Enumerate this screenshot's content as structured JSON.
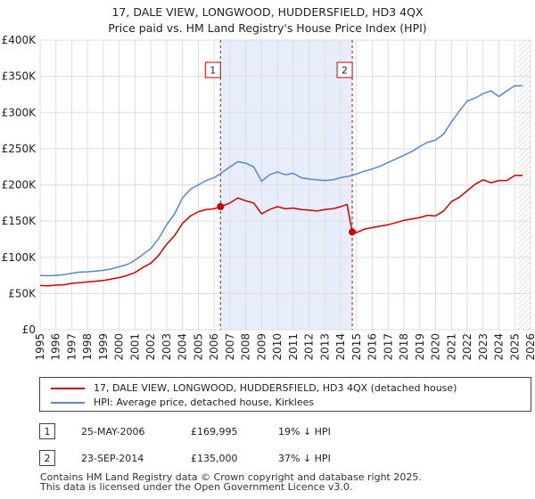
{
  "chart_data": {
    "type": "line",
    "title": "17, DALE VIEW, LONGWOOD, HUDDERSFIELD, HD3 4QX",
    "subtitle": "Price paid vs. HM Land Registry's House Price Index (HPI)",
    "xlim": [
      1995,
      2026
    ],
    "ylim": [
      0,
      400000
    ],
    "x_ticks": [
      1995,
      1996,
      1997,
      1998,
      1999,
      2000,
      2001,
      2002,
      2003,
      2004,
      2005,
      2006,
      2007,
      2008,
      2009,
      2010,
      2011,
      2012,
      2013,
      2014,
      2015,
      2016,
      2017,
      2018,
      2019,
      2020,
      2021,
      2022,
      2023,
      2024,
      2025,
      2026
    ],
    "y_ticks": [
      {
        "value": 0,
        "label": "£0"
      },
      {
        "value": 50000,
        "label": "£50K"
      },
      {
        "value": 100000,
        "label": "£100K"
      },
      {
        "value": 150000,
        "label": "£150K"
      },
      {
        "value": 200000,
        "label": "£200K"
      },
      {
        "value": 250000,
        "label": "£250K"
      },
      {
        "value": 300000,
        "label": "£300K"
      },
      {
        "value": 350000,
        "label": "£350K"
      },
      {
        "value": 400000,
        "label": "£400K"
      }
    ],
    "grid": true,
    "shaded_region": {
      "from": 2006.4,
      "to": 2014.73
    },
    "forecast_from": 2025.2,
    "series": [
      {
        "name": "17, DALE VIEW, LONGWOOD, HUDDERSFIELD, HD3 4QX (detached house)",
        "color": "#cc0000",
        "x": [
          1995,
          1995.5,
          1996,
          1996.5,
          1997,
          1997.5,
          1998,
          1998.5,
          1999,
          1999.5,
          2000,
          2000.5,
          2001,
          2001.5,
          2002,
          2002.5,
          2003,
          2003.5,
          2004,
          2004.5,
          2005,
          2005.5,
          2006,
          2006.4,
          2007,
          2007.5,
          2008,
          2008.5,
          2009,
          2009.5,
          2010,
          2010.5,
          2011,
          2011.5,
          2012,
          2012.5,
          2013,
          2013.5,
          2014,
          2014.4,
          2014.73,
          2015,
          2015.5,
          2016,
          2016.5,
          2017,
          2017.5,
          2018,
          2018.5,
          2019,
          2019.5,
          2020,
          2020.5,
          2021,
          2021.5,
          2022,
          2022.5,
          2023,
          2023.5,
          2024,
          2024.5,
          2025,
          2025.5
        ],
        "values": [
          61000,
          60500,
          61500,
          62000,
          64000,
          65000,
          66000,
          67000,
          68000,
          70000,
          72000,
          75000,
          79000,
          86000,
          92000,
          103000,
          118000,
          130000,
          147000,
          157000,
          163000,
          166000,
          167000,
          169995,
          175000,
          182000,
          178000,
          175000,
          160000,
          166000,
          170000,
          167000,
          168000,
          166000,
          165000,
          164000,
          166000,
          167000,
          170000,
          173000,
          135000,
          134000,
          139000,
          141000,
          143000,
          145000,
          148000,
          151000,
          153000,
          155000,
          158000,
          157000,
          164000,
          177000,
          183000,
          192000,
          201000,
          207000,
          203000,
          206000,
          206000,
          213000,
          213000
        ],
        "points": [
          {
            "x": 2006.4,
            "y": 169995
          },
          {
            "x": 2014.73,
            "y": 135000
          }
        ]
      },
      {
        "name": "HPI: Average price, detached house, Kirklees",
        "color": "#5588cc",
        "x": [
          1995,
          1995.5,
          1996,
          1996.5,
          1997,
          1997.5,
          1998,
          1998.5,
          1999,
          1999.5,
          2000,
          2000.5,
          2001,
          2001.5,
          2002,
          2002.5,
          2003,
          2003.5,
          2004,
          2004.5,
          2005,
          2005.5,
          2006,
          2006.5,
          2007,
          2007.5,
          2008,
          2008.5,
          2009,
          2009.5,
          2010,
          2010.5,
          2011,
          2011.5,
          2012,
          2012.5,
          2013,
          2013.5,
          2014,
          2014.5,
          2015,
          2015.5,
          2016,
          2016.5,
          2017,
          2017.5,
          2018,
          2018.5,
          2019,
          2019.5,
          2020,
          2020.5,
          2021,
          2021.5,
          2022,
          2022.5,
          2023,
          2023.5,
          2024,
          2024.5,
          2025,
          2025.5
        ],
        "values": [
          75000,
          74500,
          75000,
          76000,
          78000,
          79500,
          80000,
          81000,
          82000,
          84000,
          87000,
          90000,
          96000,
          104000,
          112000,
          126000,
          145000,
          160000,
          182000,
          194000,
          200000,
          206000,
          210000,
          217000,
          225000,
          232000,
          230000,
          225000,
          205000,
          214000,
          218000,
          214000,
          216000,
          210000,
          208000,
          207000,
          206000,
          207000,
          210000,
          212000,
          215000,
          219000,
          222000,
          226000,
          231000,
          236000,
          241000,
          246000,
          253000,
          259000,
          262000,
          270000,
          287000,
          302000,
          316000,
          320000,
          326000,
          330000,
          322000,
          330000,
          337000,
          337000
        ]
      }
    ],
    "markers": [
      {
        "label": "1",
        "x": 2006.4
      },
      {
        "label": "2",
        "x": 2014.73
      }
    ],
    "legend": [
      {
        "label": "17, DALE VIEW, LONGWOOD, HUDDERSFIELD, HD3 4QX (detached house)",
        "color": "#cc0000"
      },
      {
        "label": "HPI: Average price, detached house, Kirklees",
        "color": "#5588cc"
      }
    ]
  },
  "transactions": [
    {
      "id": "1",
      "date": "25-MAY-2006",
      "price": "£169,995",
      "hpi": "19% ↓ HPI"
    },
    {
      "id": "2",
      "date": "23-SEP-2014",
      "price": "£135,000",
      "hpi": "37% ↓ HPI"
    }
  ],
  "footer": {
    "line1": "Contains HM Land Registry data © Crown copyright and database right 2025.",
    "line2": "This data is licensed under the Open Government Licence v3.0."
  }
}
